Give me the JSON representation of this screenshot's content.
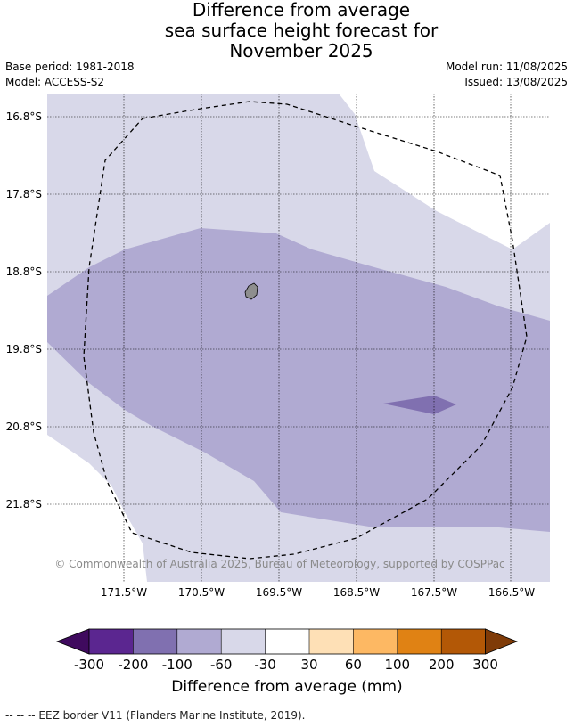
{
  "header": {
    "title_lines": [
      "Difference from average",
      "sea surface height forecast for",
      "November 2025"
    ],
    "base_period": "Base period: 1981-2018",
    "model": "Model: ACCESS-S2",
    "model_run": "Model run: 11/08/2025",
    "issued": "Issued: 13/08/2025"
  },
  "map": {
    "lat_labels": [
      "16.8°S",
      "17.8°S",
      "18.8°S",
      "19.8°S",
      "20.8°S",
      "21.8°S"
    ],
    "lon_labels": [
      "171.5°W",
      "170.5°W",
      "169.5°W",
      "168.5°W",
      "167.5°W",
      "166.5°W"
    ],
    "copyright": "© Commonwealth of Australia 2025, Bureau of Meteorology, supported by COSPPac",
    "colors": {
      "band_-60_-30": "#d8d8e9",
      "band_-100_-60": "#b0aad2",
      "band_-200_-100": "#8070b0",
      "land": "#8e8e8e"
    }
  },
  "colorbar": {
    "title": "Difference from average (mm)",
    "tick_labels": [
      "-300",
      "-200",
      "-100",
      "-60",
      "-30",
      "30",
      "60",
      "100",
      "200",
      "300"
    ],
    "colors": [
      "#3f0a5e",
      "#5b2690",
      "#8070b0",
      "#b0aad2",
      "#d8d8e9",
      "#ffffff",
      "#fee0b6",
      "#fdb863",
      "#e08214",
      "#b35806",
      "#7f3b08"
    ]
  },
  "footer": {
    "legend_note": "-- -- -- EEZ border V11 (Flanders Marine Institute, 2019)."
  }
}
